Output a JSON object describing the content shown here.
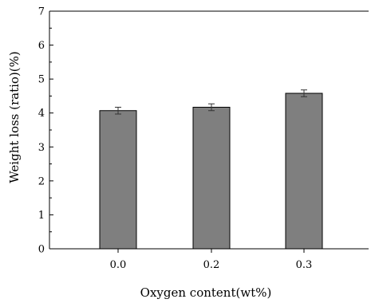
{
  "chart_data": {
    "type": "bar",
    "xlabel": "Oxygen content(wt%)",
    "ylabel": "Weight loss (ratio)(%)",
    "categories": [
      "0.0",
      "0.2",
      "0.3"
    ],
    "values": [
      4.07,
      4.17,
      4.58
    ],
    "errors": [
      0.1,
      0.1,
      0.1
    ],
    "ylim": [
      0,
      7
    ],
    "yticks": [
      "0",
      "1",
      "2",
      "3",
      "4",
      "5",
      "6",
      "7"
    ],
    "bar_color": "#7f7f7f",
    "grid": false,
    "legend": "none"
  }
}
